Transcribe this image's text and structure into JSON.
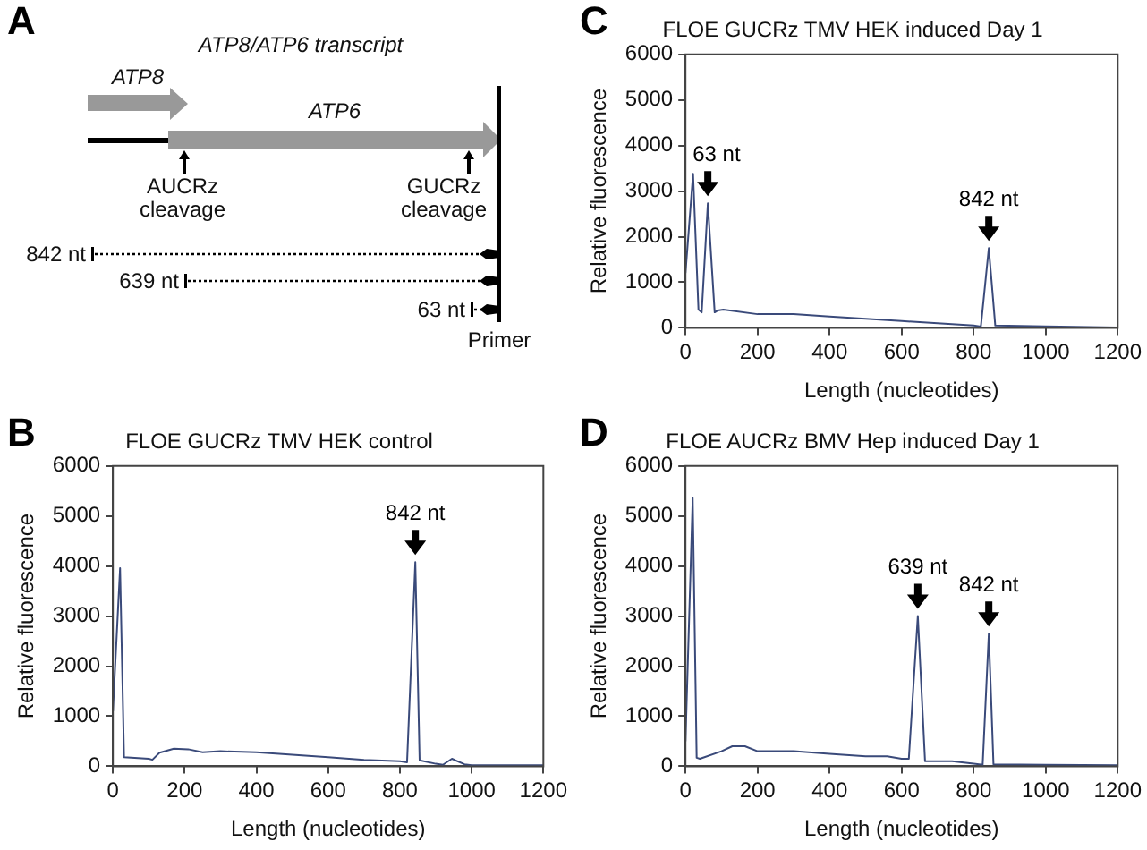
{
  "chart_data": [
    {
      "type": "other",
      "title": "ATP8/ATP6 transcript",
      "annotations": [
        "A",
        "ATP8",
        "ATP6",
        "AUCRz cleavage",
        "GUCRz cleavage",
        "842 nt",
        "639 nt",
        "63 nt",
        "Primer"
      ]
    },
    {
      "type": "line",
      "title": "FLOE GUCRz TMV HEK induced Day 1",
      "xlabel": "Length (nucleotides)",
      "ylabel": "Relative fluorescence",
      "x": [
        0,
        21,
        36,
        45,
        62,
        81,
        89,
        105,
        200,
        300,
        400,
        500,
        600,
        700,
        800,
        820,
        842,
        860,
        1000,
        1200
      ],
      "series": [
        {
          "color": "#3a4a7a",
          "values": [
            1200,
            3380,
            400,
            340,
            2730,
            340,
            380,
            400,
            300,
            300,
            250,
            200,
            150,
            100,
            50,
            30,
            1750,
            50,
            30,
            10
          ]
        }
      ],
      "xlim": [
        0,
        1200
      ],
      "xticks": [
        0,
        200,
        400,
        600,
        800,
        1000,
        1200
      ],
      "ylim": [
        0,
        6000
      ],
      "yticks": [
        0,
        1000,
        2000,
        3000,
        4000,
        5000,
        6000
      ],
      "grid": false,
      "legend": false,
      "marker": "none",
      "annotations": [
        "C",
        {
          "text": "63 nt",
          "x": 62,
          "y": 2730
        },
        {
          "text": "842 nt",
          "x": 842,
          "y": 1750
        }
      ]
    },
    {
      "type": "line",
      "title": "FLOE GUCRz TMV HEK control",
      "xlabel": "Length (nucleotides)",
      "ylabel": "Relative fluorescence",
      "x": [
        0,
        20,
        31,
        100,
        110,
        130,
        170,
        210,
        250,
        300,
        400,
        500,
        600,
        700,
        800,
        820,
        843,
        855,
        900,
        920,
        945,
        980,
        1000,
        1200
      ],
      "series": [
        {
          "color": "#3a4a7a",
          "values": [
            1100,
            3960,
            180,
            150,
            130,
            270,
            350,
            340,
            280,
            300,
            280,
            230,
            180,
            130,
            100,
            80,
            4080,
            120,
            50,
            30,
            150,
            40,
            20,
            20
          ]
        }
      ],
      "xlim": [
        0,
        1200
      ],
      "xticks": [
        0,
        200,
        400,
        600,
        800,
        1000,
        1200
      ],
      "ylim": [
        0,
        6000
      ],
      "yticks": [
        0,
        1000,
        2000,
        3000,
        4000,
        5000,
        6000
      ],
      "grid": false,
      "legend": false,
      "marker": "none",
      "annotations": [
        "B",
        {
          "text": "842 nt",
          "x": 843,
          "y": 4080
        }
      ]
    },
    {
      "type": "line",
      "title": "FLOE AUCRz BMV Hep induced Day 1",
      "xlabel": "Length (nucleotides)",
      "ylabel": "Relative fluorescence",
      "x": [
        0,
        20,
        31,
        40,
        100,
        130,
        165,
        200,
        300,
        400,
        500,
        560,
        600,
        620,
        645,
        665,
        740,
        800,
        825,
        842,
        855,
        1000,
        1200
      ],
      "series": [
        {
          "color": "#3a4a7a",
          "values": [
            500,
            5360,
            170,
            150,
            300,
            400,
            400,
            300,
            300,
            250,
            200,
            200,
            150,
            150,
            3000,
            100,
            100,
            50,
            30,
            2650,
            40,
            30,
            20
          ]
        }
      ],
      "xlim": [
        0,
        1200
      ],
      "xticks": [
        0,
        200,
        400,
        600,
        800,
        1000,
        1200
      ],
      "ylim": [
        0,
        6000
      ],
      "yticks": [
        0,
        1000,
        2000,
        3000,
        4000,
        5000,
        6000
      ],
      "grid": false,
      "legend": false,
      "marker": "none",
      "annotations": [
        "D",
        {
          "text": "639 nt",
          "x": 645,
          "y": 3000
        },
        {
          "text": "842 nt",
          "x": 842,
          "y": 2650
        }
      ]
    }
  ]
}
